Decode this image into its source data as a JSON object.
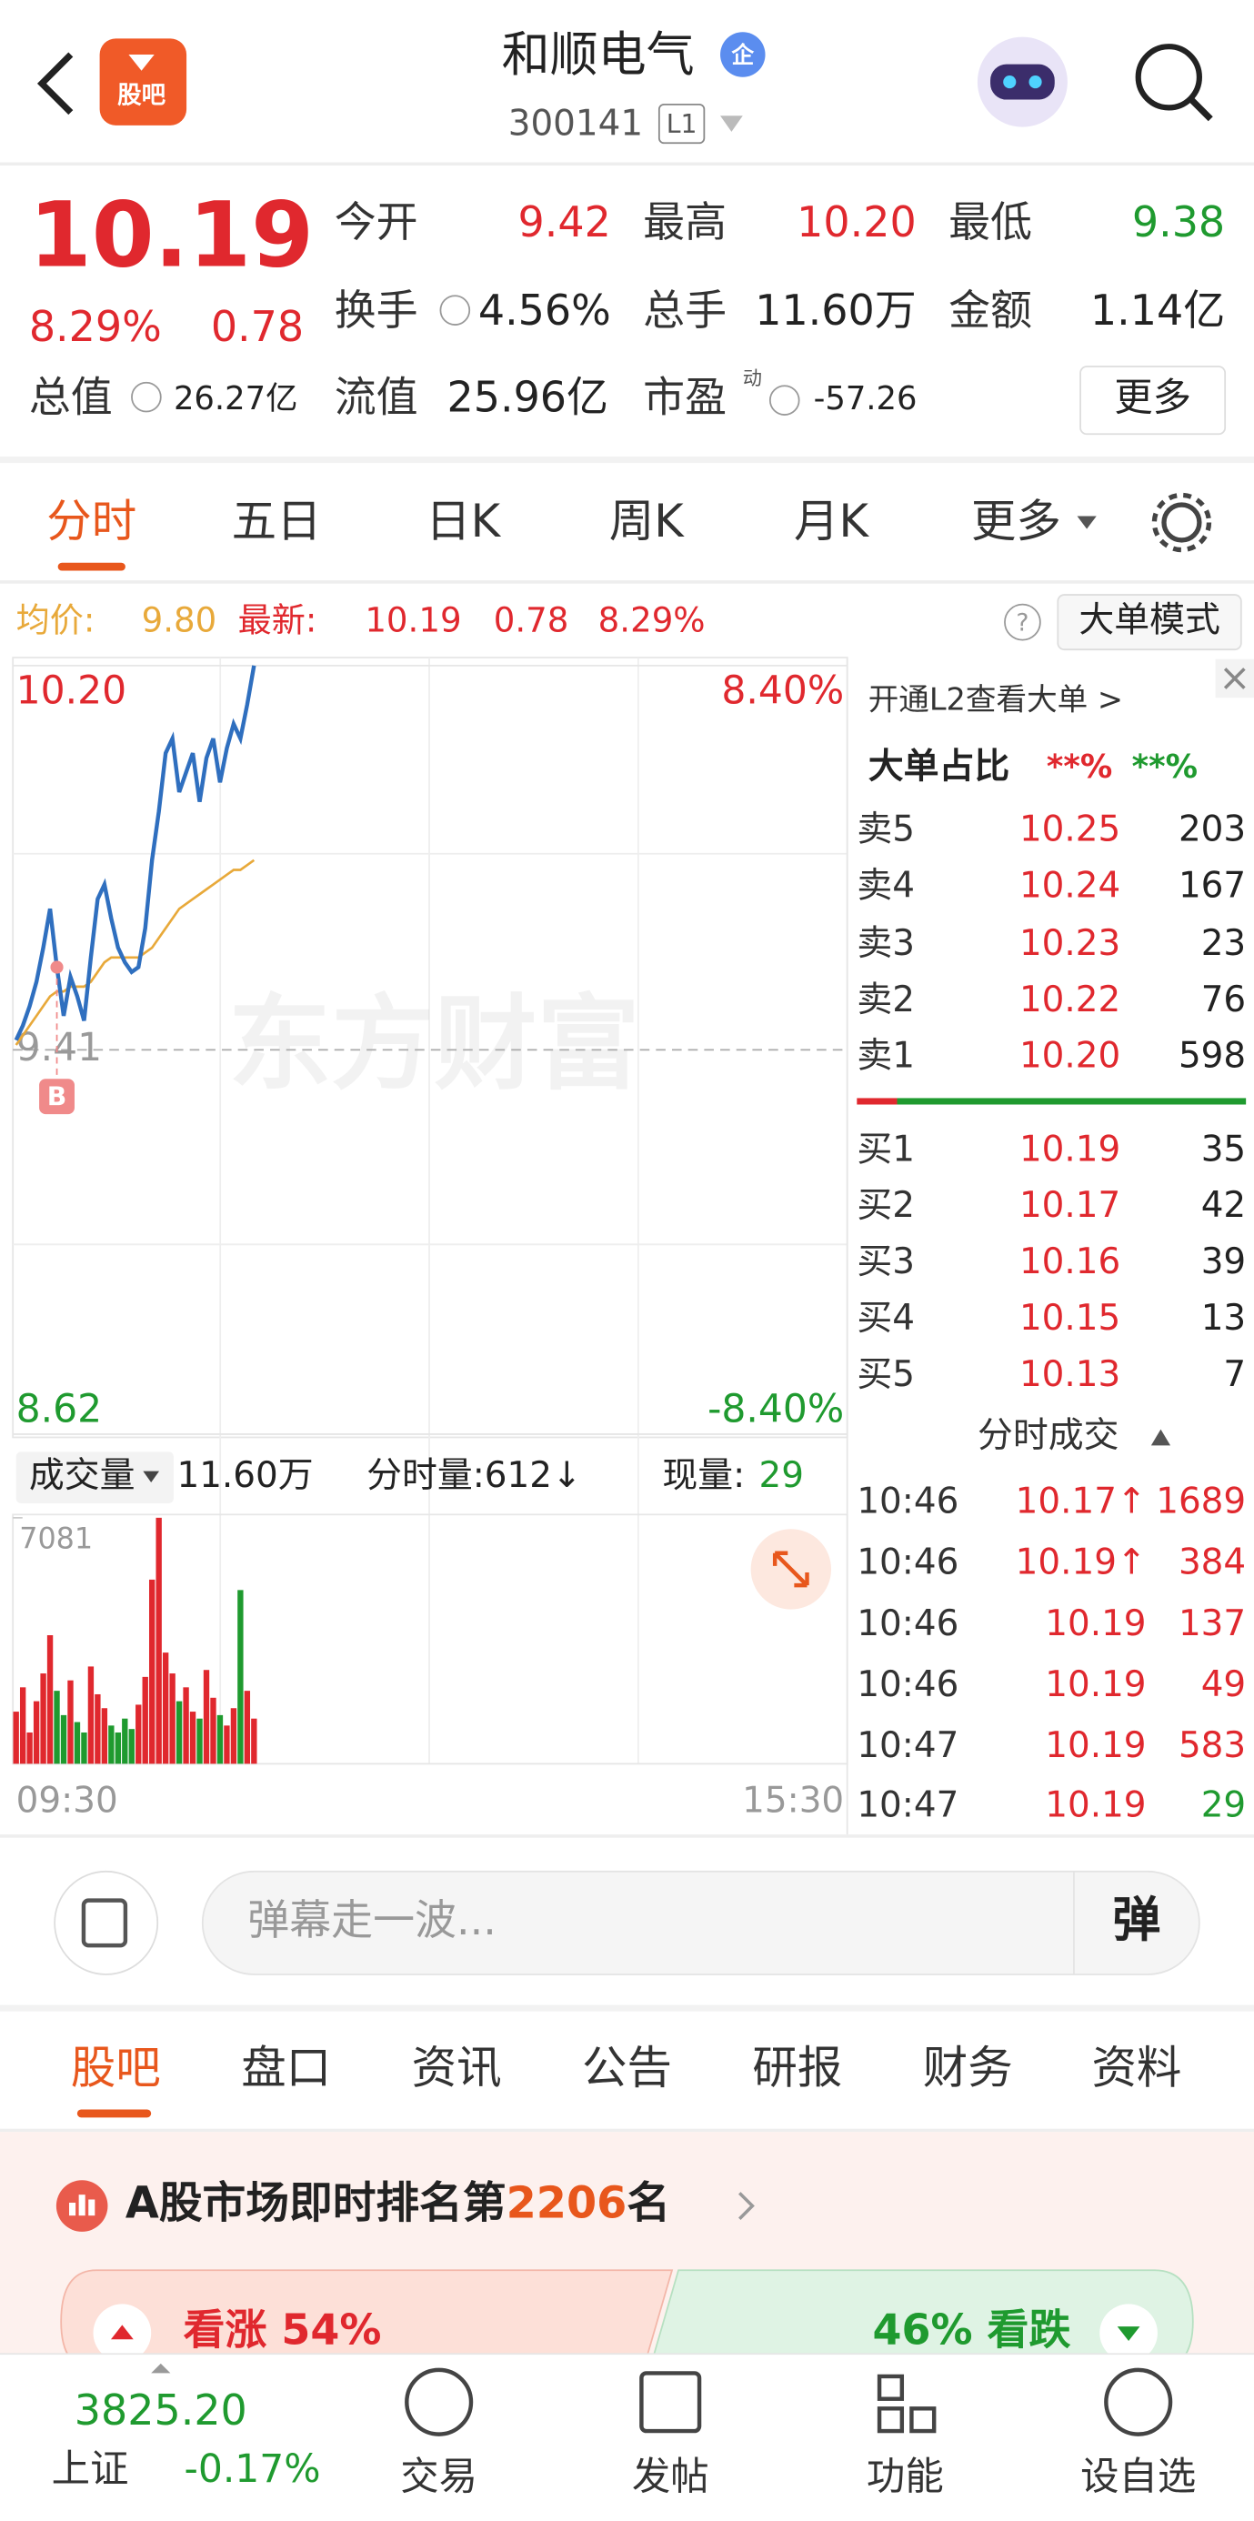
{
  "header": {
    "logo": "股吧",
    "title": "和顺电气",
    "badge": "企",
    "code": "300141",
    "level": "L1"
  },
  "quote": {
    "price": "10.19",
    "pct": "8.29%",
    "change": "0.78",
    "stats": [
      {
        "label": "今开",
        "value": "9.42"
      },
      {
        "label": "最高",
        "value": "10.20"
      },
      {
        "label": "最低",
        "value": "9.38"
      },
      {
        "label": "换手",
        "value": "4.56%"
      },
      {
        "label": "总手",
        "value": "11.60万"
      },
      {
        "label": "金额",
        "value": "1.14亿"
      },
      {
        "label": "总值",
        "value": "26.27亿"
      },
      {
        "label": "流值",
        "value": "25.96亿"
      },
      {
        "label": "市盈",
        "sup": "动",
        "value": "-57.26"
      }
    ],
    "more": "更多"
  },
  "tabs": [
    "分时",
    "五日",
    "日K",
    "周K",
    "月K",
    "更多"
  ],
  "info": {
    "avg_label": "均价:",
    "avg": "9.80",
    "latest_label": "最新:",
    "latest": "10.19",
    "change": "0.78",
    "pct": "8.29%",
    "mode": "大单模式"
  },
  "chart": {
    "type": "line",
    "ylim": [
      8.62,
      10.2
    ],
    "yticks": [
      {
        "value": 10.2,
        "label": "10.20"
      },
      {
        "value": 9.41,
        "label": "9.41"
      },
      {
        "value": 8.62,
        "label": "8.62"
      }
    ],
    "pct_labels": [
      "8.40%",
      "-8.40%"
    ],
    "price": {
      "color": "#2f6fbf",
      "values": [
        9.43,
        9.46,
        9.5,
        9.55,
        9.62,
        9.7,
        9.58,
        9.48,
        9.56,
        9.52,
        9.47,
        9.6,
        9.72,
        9.75,
        9.68,
        9.62,
        9.59,
        9.57,
        9.58,
        9.66,
        9.8,
        9.9,
        10.02,
        10.05,
        9.94,
        9.98,
        10.02,
        9.92,
        10.01,
        10.05,
        9.96,
        10.03,
        10.08,
        10.05,
        10.12,
        10.2
      ]
    },
    "avg": {
      "color": "#e8a93a",
      "values": [
        9.42,
        9.44,
        9.46,
        9.48,
        9.5,
        9.52,
        9.53,
        9.53,
        9.54,
        9.54,
        9.54,
        9.55,
        9.57,
        9.59,
        9.6,
        9.6,
        9.6,
        9.6,
        9.6,
        9.61,
        9.62,
        9.64,
        9.66,
        9.68,
        9.7,
        9.71,
        9.72,
        9.73,
        9.74,
        9.75,
        9.76,
        9.77,
        9.78,
        9.78,
        9.79,
        9.8
      ]
    },
    "buy_marker": {
      "label": "B",
      "value": 9.58
    },
    "watermark": "东方财富",
    "volume": {
      "ylim": [
        0,
        7081
      ],
      "yticks": [
        7081
      ],
      "up_color": "#e0282e",
      "down_color": "#1f9a2f",
      "values": [
        1500,
        2200,
        900,
        1800,
        2600,
        3700,
        2100,
        1400,
        2400,
        1200,
        900,
        2800,
        2000,
        1600,
        1100,
        900,
        1300,
        1000,
        1700,
        2500,
        5300,
        7081,
        3200,
        2600,
        1800,
        2200,
        1500,
        1300,
        2700,
        1900,
        1400,
        1100,
        1600,
        5000,
        2100,
        1300
      ]
    },
    "times": [
      "09:30",
      "15:30"
    ]
  },
  "volume_bar": {
    "label": "成交量",
    "total": "11.60万",
    "minute_label": "分时量:612↓",
    "now_label": "现量:",
    "now": "29"
  },
  "orderbook": {
    "l2": "开通L2查看大单 >",
    "ratio_label": "大单占比",
    "ratio_up": "**%",
    "ratio_down": "**%",
    "asks": [
      [
        "卖5",
        "10.25",
        "203"
      ],
      [
        "卖4",
        "10.24",
        "167"
      ],
      [
        "卖3",
        "10.23",
        "23"
      ],
      [
        "卖2",
        "10.22",
        "76"
      ],
      [
        "卖1",
        "10.20",
        "598"
      ]
    ],
    "bids": [
      [
        "买1",
        "10.19",
        "35"
      ],
      [
        "买2",
        "10.17",
        "42"
      ],
      [
        "买3",
        "10.16",
        "39"
      ],
      [
        "买4",
        "10.15",
        "13"
      ],
      [
        "买5",
        "10.13",
        "7"
      ]
    ],
    "ticks_title": "分时成交",
    "trades": [
      [
        "10:46",
        "10.17↑",
        "1689"
      ],
      [
        "10:46",
        "10.19↑",
        "384"
      ],
      [
        "10:46",
        "10.19",
        "137"
      ],
      [
        "10:46",
        "10.19",
        "49"
      ],
      [
        "10:47",
        "10.19",
        "583"
      ],
      [
        "10:47",
        "10.19",
        "29"
      ]
    ]
  },
  "danmaku": {
    "placeholder": "弹幕走一波...",
    "button": "弹"
  },
  "sections": [
    "股吧",
    "盘口",
    "资讯",
    "公告",
    "研报",
    "财务",
    "资料"
  ],
  "rank": {
    "prefix": "A股市场即时排名第",
    "number": "2206",
    "suffix": "名",
    "up": "看涨 54%",
    "down": "46% 看跌"
  },
  "nav": {
    "index_value": "3825.20",
    "index_name": "上证",
    "index_pct": "-0.17%",
    "items": [
      "交易",
      "发帖",
      "功能",
      "设自选"
    ]
  }
}
